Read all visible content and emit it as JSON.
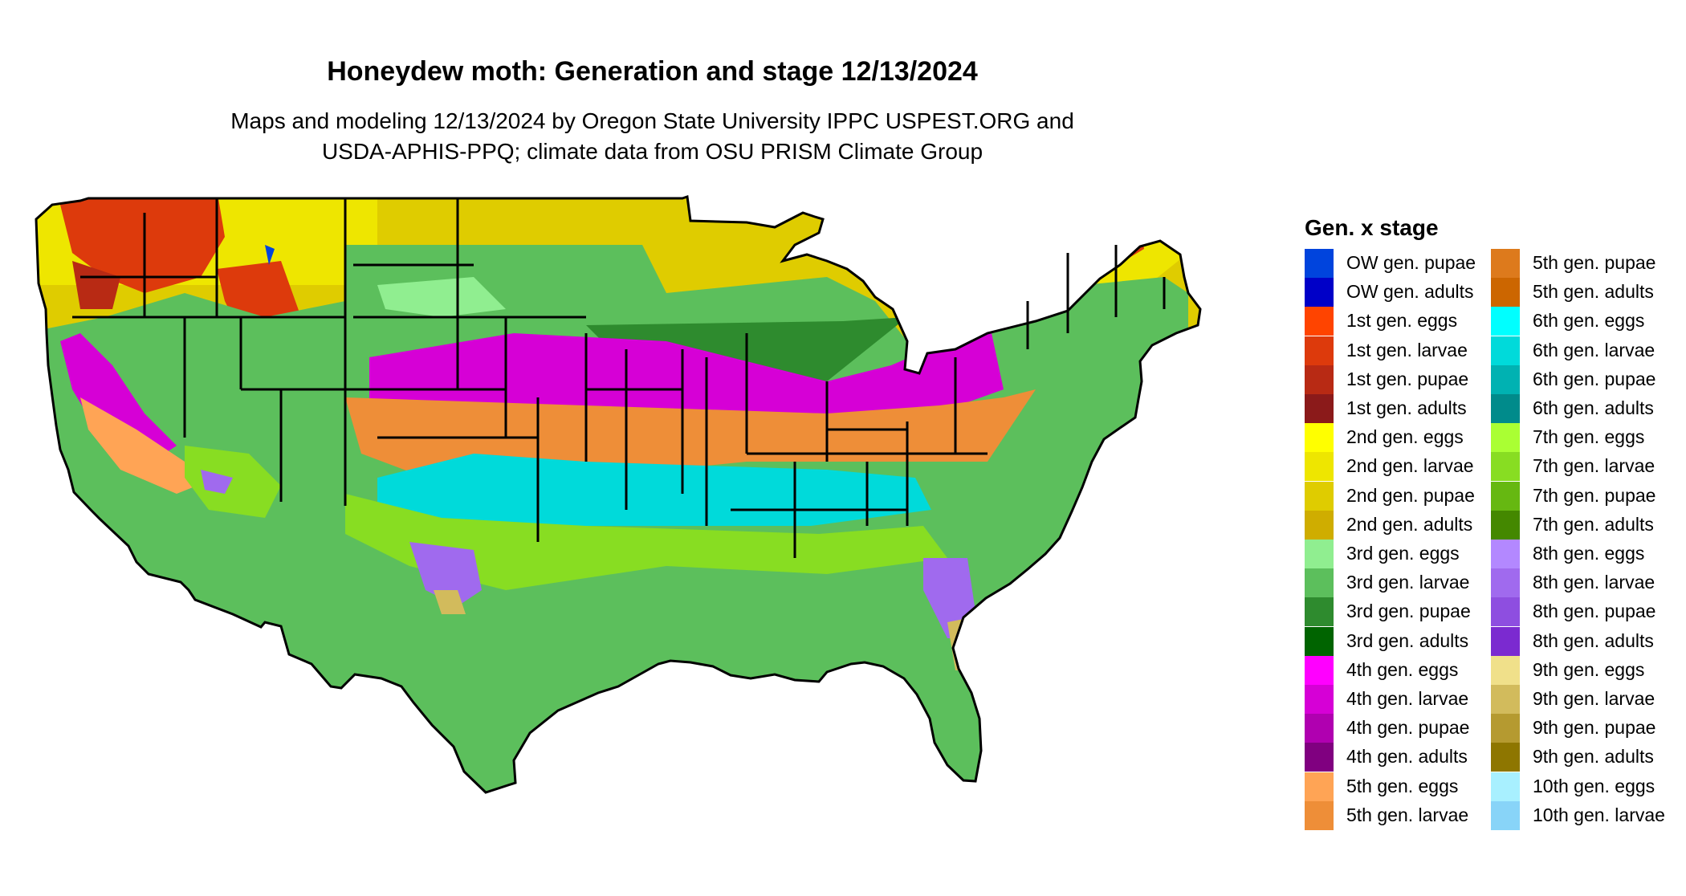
{
  "title": "Honeydew moth: Generation and stage 12/13/2024",
  "subtitle_lines": [
    "Maps and modeling 12/13/2024 by Oregon State University IPPC USPEST.ORG and",
    "USDA-APHIS-PPQ; climate data from OSU PRISM Climate Group"
  ],
  "legend": {
    "title": "Gen. x stage",
    "items": [
      {
        "label": "OW gen. pupae",
        "color": "#0044dd"
      },
      {
        "label": "OW gen. adults",
        "color": "#0000c8"
      },
      {
        "label": "1st gen. eggs",
        "color": "#ff4400"
      },
      {
        "label": "1st gen. larvae",
        "color": "#dd3a0c"
      },
      {
        "label": "1st gen. pupae",
        "color": "#b82a14"
      },
      {
        "label": "1st gen. adults",
        "color": "#8b1a1a"
      },
      {
        "label": "2nd gen. eggs",
        "color": "#ffff00"
      },
      {
        "label": "2nd gen. larvae",
        "color": "#eee600"
      },
      {
        "label": "2nd gen. pupae",
        "color": "#dfcc00"
      },
      {
        "label": "2nd gen. adults",
        "color": "#cfad00"
      },
      {
        "label": "3rd gen. eggs",
        "color": "#90ee90"
      },
      {
        "label": "3rd gen. larvae",
        "color": "#5cbf5c"
      },
      {
        "label": "3rd gen. pupae",
        "color": "#2e8b2e"
      },
      {
        "label": "3rd gen. adults",
        "color": "#006400"
      },
      {
        "label": "4th gen. eggs",
        "color": "#ff00ff"
      },
      {
        "label": "4th gen. larvae",
        "color": "#d600d6"
      },
      {
        "label": "4th gen. pupae",
        "color": "#b000b0"
      },
      {
        "label": "4th gen. adults",
        "color": "#800080"
      },
      {
        "label": "5th gen. eggs",
        "color": "#ffa455"
      },
      {
        "label": "5th gen. larvae",
        "color": "#ee8e38"
      },
      {
        "label": "5th gen. pupae",
        "color": "#dd7a1c"
      },
      {
        "label": "5th gen. adults",
        "color": "#cc6600"
      },
      {
        "label": "6th gen. eggs",
        "color": "#00ffff"
      },
      {
        "label": "6th gen. larvae",
        "color": "#00dada"
      },
      {
        "label": "6th gen. pupae",
        "color": "#00b2b2"
      },
      {
        "label": "6th gen. adults",
        "color": "#008b8b"
      },
      {
        "label": "7th gen. eggs",
        "color": "#aaff33"
      },
      {
        "label": "7th gen. larvae",
        "color": "#88dd22"
      },
      {
        "label": "7th gen. pupae",
        "color": "#66b811"
      },
      {
        "label": "7th gen. adults",
        "color": "#448800"
      },
      {
        "label": "8th gen. eggs",
        "color": "#b388ff"
      },
      {
        "label": "8th gen. larvae",
        "color": "#a06aee"
      },
      {
        "label": "8th gen. pupae",
        "color": "#8e4ee0"
      },
      {
        "label": "8th gen. adults",
        "color": "#7b2ad0"
      },
      {
        "label": "9th gen. eggs",
        "color": "#f0e08a"
      },
      {
        "label": "9th gen. larvae",
        "color": "#d2bb5c"
      },
      {
        "label": "9th gen. pupae",
        "color": "#b59a30"
      },
      {
        "label": "9th gen. adults",
        "color": "#8e7600"
      },
      {
        "label": "10th gen. eggs",
        "color": "#a8f0ff"
      },
      {
        "label": "10th gen. larvae",
        "color": "#88d4f8"
      }
    ]
  }
}
